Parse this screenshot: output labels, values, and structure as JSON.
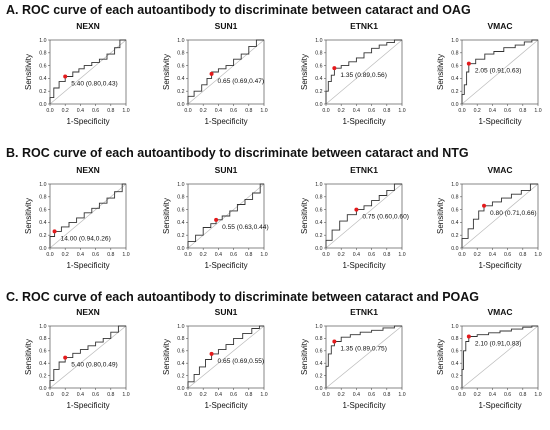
{
  "sections": [
    {
      "title": "A. ROC curve of each autoantibody to discriminate between cataract and OAG"
    },
    {
      "title": "B. ROC curve of each autoantibody to discriminate between cataract and NTG"
    },
    {
      "title": "C. ROC curve of each autoantibody to discriminate between cataract and POAG"
    }
  ],
  "colors": {
    "curve": "#333333",
    "diagonal": "#bbbbbb",
    "point": "#e41a1c"
  },
  "chart_data": [
    {
      "type": "line",
      "title": "NEXN",
      "xlabel": "1-Specificity",
      "ylabel": "Sensitivity",
      "xticks": [
        "0.0",
        "0.2",
        "0.4",
        "0.6",
        "0.8",
        "1.0"
      ],
      "yticks": [
        "0.0",
        "0.2",
        "0.4",
        "0.6",
        "0.8",
        "1.0"
      ],
      "xlim": [
        0,
        1
      ],
      "ylim": [
        0,
        1
      ],
      "diagonal": true,
      "cutoff_point": {
        "x": 0.2,
        "y": 0.43
      },
      "annotation": "5.40 (0.80,0.43)",
      "x": [
        0,
        0,
        0.05,
        0.05,
        0.12,
        0.12,
        0.2,
        0.2,
        0.3,
        0.3,
        0.38,
        0.38,
        0.45,
        0.45,
        0.55,
        0.55,
        0.65,
        0.65,
        0.75,
        0.75,
        0.85,
        0.85,
        0.92,
        0.92,
        1
      ],
      "y": [
        0,
        0.1,
        0.1,
        0.25,
        0.25,
        0.35,
        0.35,
        0.43,
        0.43,
        0.5,
        0.5,
        0.55,
        0.55,
        0.6,
        0.6,
        0.65,
        0.65,
        0.7,
        0.7,
        0.78,
        0.78,
        0.88,
        0.88,
        1,
        1
      ]
    },
    {
      "type": "line",
      "title": "SUN1",
      "xlabel": "1-Specificity",
      "ylabel": "Sensitivity",
      "xticks": [
        "0.0",
        "0.2",
        "0.4",
        "0.6",
        "0.8",
        "1.0"
      ],
      "yticks": [
        "0.0",
        "0.2",
        "0.4",
        "0.6",
        "0.8",
        "1.0"
      ],
      "xlim": [
        0,
        1
      ],
      "ylim": [
        0,
        1
      ],
      "diagonal": true,
      "cutoff_point": {
        "x": 0.31,
        "y": 0.47
      },
      "annotation": "0.65 (0.69,0.47)",
      "x": [
        0,
        0,
        0.08,
        0.08,
        0.18,
        0.18,
        0.25,
        0.25,
        0.31,
        0.31,
        0.4,
        0.4,
        0.5,
        0.5,
        0.6,
        0.6,
        0.7,
        0.7,
        0.8,
        0.8,
        0.9,
        0.9,
        1
      ],
      "y": [
        0,
        0.12,
        0.12,
        0.2,
        0.2,
        0.3,
        0.3,
        0.4,
        0.4,
        0.5,
        0.5,
        0.55,
        0.55,
        0.6,
        0.6,
        0.7,
        0.7,
        0.78,
        0.78,
        0.9,
        0.9,
        1,
        1
      ]
    },
    {
      "type": "line",
      "title": "ETNK1",
      "xlabel": "1-Specificity",
      "ylabel": "Sensitivity",
      "xticks": [
        "0.0",
        "0.2",
        "0.4",
        "0.6",
        "0.8",
        "1.0"
      ],
      "yticks": [
        "0.0",
        "0.2",
        "0.4",
        "0.6",
        "0.8",
        "1.0"
      ],
      "xlim": [
        0,
        1
      ],
      "ylim": [
        0,
        1
      ],
      "diagonal": true,
      "cutoff_point": {
        "x": 0.11,
        "y": 0.56
      },
      "annotation": "1.35 (0.89,0.56)",
      "x": [
        0,
        0,
        0.03,
        0.03,
        0.07,
        0.07,
        0.11,
        0.11,
        0.2,
        0.2,
        0.3,
        0.3,
        0.4,
        0.4,
        0.5,
        0.5,
        0.6,
        0.6,
        0.7,
        0.7,
        0.8,
        0.8,
        0.9,
        0.9,
        1
      ],
      "y": [
        0,
        0.2,
        0.2,
        0.35,
        0.35,
        0.45,
        0.45,
        0.56,
        0.56,
        0.6,
        0.6,
        0.66,
        0.66,
        0.72,
        0.72,
        0.8,
        0.8,
        0.87,
        0.87,
        0.92,
        0.92,
        0.96,
        0.96,
        1,
        1
      ]
    },
    {
      "type": "line",
      "title": "VMAC",
      "xlabel": "1-Specificity",
      "ylabel": "Sensitivity",
      "xticks": [
        "0.0",
        "0.2",
        "0.4",
        "0.6",
        "0.8",
        "1.0"
      ],
      "yticks": [
        "0.0",
        "0.2",
        "0.4",
        "0.6",
        "0.8",
        "1.0"
      ],
      "xlim": [
        0,
        1
      ],
      "ylim": [
        0,
        1
      ],
      "diagonal": true,
      "cutoff_point": {
        "x": 0.09,
        "y": 0.63
      },
      "annotation": "2.05 (0.91,0.63)",
      "x": [
        0,
        0,
        0.03,
        0.03,
        0.06,
        0.06,
        0.09,
        0.09,
        0.18,
        0.18,
        0.3,
        0.3,
        0.42,
        0.42,
        0.55,
        0.55,
        0.7,
        0.7,
        0.82,
        0.82,
        0.92,
        0.92,
        1
      ],
      "y": [
        0,
        0.15,
        0.15,
        0.3,
        0.3,
        0.5,
        0.5,
        0.63,
        0.63,
        0.7,
        0.7,
        0.78,
        0.78,
        0.82,
        0.82,
        0.88,
        0.88,
        0.92,
        0.92,
        0.97,
        0.97,
        1,
        1
      ]
    },
    {
      "type": "line",
      "title": "NEXN",
      "xlabel": "1-Specificity",
      "ylabel": "Sensitivity",
      "xticks": [
        "0.0",
        "0.2",
        "0.4",
        "0.6",
        "0.8",
        "1.0"
      ],
      "yticks": [
        "0.0",
        "0.2",
        "0.4",
        "0.6",
        "0.8",
        "1.0"
      ],
      "xlim": [
        0,
        1
      ],
      "ylim": [
        0,
        1
      ],
      "diagonal": true,
      "cutoff_point": {
        "x": 0.06,
        "y": 0.26
      },
      "annotation": "14.00 (0.94,0.26)",
      "x": [
        0,
        0,
        0.06,
        0.06,
        0.15,
        0.15,
        0.25,
        0.25,
        0.35,
        0.35,
        0.45,
        0.45,
        0.55,
        0.55,
        0.65,
        0.65,
        0.75,
        0.75,
        0.85,
        0.85,
        0.95,
        0.95,
        1
      ],
      "y": [
        0,
        0.18,
        0.18,
        0.26,
        0.26,
        0.33,
        0.33,
        0.4,
        0.4,
        0.47,
        0.47,
        0.55,
        0.55,
        0.62,
        0.62,
        0.7,
        0.7,
        0.78,
        0.78,
        0.88,
        0.88,
        1,
        1
      ]
    },
    {
      "type": "line",
      "title": "SUN1",
      "xlabel": "1-Specificity",
      "ylabel": "Sensitivity",
      "xticks": [
        "0.0",
        "0.2",
        "0.4",
        "0.6",
        "0.8",
        "1.0"
      ],
      "yticks": [
        "0.0",
        "0.2",
        "0.4",
        "0.6",
        "0.8",
        "1.0"
      ],
      "xlim": [
        0,
        1
      ],
      "ylim": [
        0,
        1
      ],
      "diagonal": true,
      "cutoff_point": {
        "x": 0.37,
        "y": 0.44
      },
      "annotation": "0.55 (0.63,0.44)",
      "x": [
        0,
        0,
        0.1,
        0.1,
        0.2,
        0.2,
        0.3,
        0.3,
        0.37,
        0.37,
        0.45,
        0.45,
        0.55,
        0.55,
        0.65,
        0.65,
        0.75,
        0.75,
        0.85,
        0.85,
        0.95,
        0.95,
        1
      ],
      "y": [
        0,
        0.1,
        0.1,
        0.2,
        0.2,
        0.32,
        0.32,
        0.38,
        0.38,
        0.44,
        0.44,
        0.5,
        0.5,
        0.58,
        0.58,
        0.68,
        0.68,
        0.76,
        0.76,
        0.86,
        0.86,
        1,
        1
      ]
    },
    {
      "type": "line",
      "title": "ETNK1",
      "xlabel": "1-Specificity",
      "ylabel": "Sensitivity",
      "xticks": [
        "0.0",
        "0.2",
        "0.4",
        "0.6",
        "0.8",
        "1.0"
      ],
      "yticks": [
        "0.0",
        "0.2",
        "0.4",
        "0.6",
        "0.8",
        "1.0"
      ],
      "xlim": [
        0,
        1
      ],
      "ylim": [
        0,
        1
      ],
      "diagonal": true,
      "cutoff_point": {
        "x": 0.4,
        "y": 0.6
      },
      "annotation": "0.75 (0.60,0.60)",
      "x": [
        0,
        0,
        0.08,
        0.08,
        0.18,
        0.18,
        0.28,
        0.28,
        0.4,
        0.4,
        0.5,
        0.5,
        0.6,
        0.6,
        0.7,
        0.7,
        0.8,
        0.8,
        0.9,
        0.9,
        1
      ],
      "y": [
        0,
        0.12,
        0.12,
        0.28,
        0.28,
        0.42,
        0.42,
        0.52,
        0.52,
        0.6,
        0.6,
        0.66,
        0.66,
        0.74,
        0.74,
        0.82,
        0.82,
        0.9,
        0.9,
        1,
        1
      ]
    },
    {
      "type": "line",
      "title": "VMAC",
      "xlabel": "1-Specificity",
      "ylabel": "Sensitivity",
      "xticks": [
        "0.0",
        "0.2",
        "0.4",
        "0.6",
        "0.8",
        "1.0"
      ],
      "yticks": [
        "0.0",
        "0.2",
        "0.4",
        "0.6",
        "0.8",
        "1.0"
      ],
      "xlim": [
        0,
        1
      ],
      "ylim": [
        0,
        1
      ],
      "diagonal": true,
      "cutoff_point": {
        "x": 0.29,
        "y": 0.66
      },
      "annotation": "0.80 (0.71,0.66)",
      "x": [
        0,
        0,
        0.08,
        0.08,
        0.15,
        0.15,
        0.22,
        0.22,
        0.29,
        0.29,
        0.4,
        0.4,
        0.52,
        0.52,
        0.65,
        0.65,
        0.78,
        0.78,
        0.9,
        0.9,
        1
      ],
      "y": [
        0,
        0.15,
        0.15,
        0.3,
        0.3,
        0.45,
        0.45,
        0.58,
        0.58,
        0.66,
        0.66,
        0.72,
        0.72,
        0.78,
        0.78,
        0.84,
        0.84,
        0.9,
        0.9,
        1,
        1
      ]
    },
    {
      "type": "line",
      "title": "NEXN",
      "xlabel": "1-Specificity",
      "ylabel": "Sensitivity",
      "xticks": [
        "0.0",
        "0.2",
        "0.4",
        "0.6",
        "0.8",
        "1.0"
      ],
      "yticks": [
        "0.0",
        "0.2",
        "0.4",
        "0.6",
        "0.8",
        "1.0"
      ],
      "xlim": [
        0,
        1
      ],
      "ylim": [
        0,
        1
      ],
      "diagonal": true,
      "cutoff_point": {
        "x": 0.2,
        "y": 0.49
      },
      "annotation": "5.40 (0.80,0.49)",
      "x": [
        0,
        0,
        0.05,
        0.05,
        0.12,
        0.12,
        0.2,
        0.2,
        0.3,
        0.3,
        0.4,
        0.4,
        0.5,
        0.5,
        0.6,
        0.6,
        0.7,
        0.7,
        0.8,
        0.8,
        0.9,
        0.9,
        1
      ],
      "y": [
        0,
        0.12,
        0.12,
        0.3,
        0.3,
        0.42,
        0.42,
        0.49,
        0.49,
        0.56,
        0.56,
        0.62,
        0.62,
        0.68,
        0.68,
        0.74,
        0.74,
        0.8,
        0.8,
        0.9,
        0.9,
        1,
        1
      ]
    },
    {
      "type": "line",
      "title": "SUN1",
      "xlabel": "1-Specificity",
      "ylabel": "Sensitivity",
      "xticks": [
        "0.0",
        "0.2",
        "0.4",
        "0.6",
        "0.8",
        "1.0"
      ],
      "yticks": [
        "0.0",
        "0.2",
        "0.4",
        "0.6",
        "0.8",
        "1.0"
      ],
      "xlim": [
        0,
        1
      ],
      "ylim": [
        0,
        1
      ],
      "diagonal": true,
      "cutoff_point": {
        "x": 0.31,
        "y": 0.55
      },
      "annotation": "0.65 (0.69,0.55)",
      "x": [
        0,
        0,
        0.08,
        0.08,
        0.15,
        0.15,
        0.23,
        0.23,
        0.31,
        0.31,
        0.4,
        0.4,
        0.5,
        0.5,
        0.6,
        0.6,
        0.72,
        0.72,
        0.84,
        0.84,
        0.94,
        0.94,
        1
      ],
      "y": [
        0,
        0.1,
        0.1,
        0.22,
        0.22,
        0.34,
        0.34,
        0.46,
        0.46,
        0.55,
        0.55,
        0.62,
        0.62,
        0.7,
        0.7,
        0.8,
        0.8,
        0.88,
        0.88,
        0.96,
        0.96,
        1,
        1
      ]
    },
    {
      "type": "line",
      "title": "ETNK1",
      "xlabel": "1-Specificity",
      "ylabel": "Sensitivity",
      "xticks": [
        "0.0",
        "0.2",
        "0.4",
        "0.6",
        "0.8",
        "1.0"
      ],
      "yticks": [
        "0.0",
        "0.2",
        "0.4",
        "0.6",
        "0.8",
        "1.0"
      ],
      "xlim": [
        0,
        1
      ],
      "ylim": [
        0,
        1
      ],
      "diagonal": true,
      "cutoff_point": {
        "x": 0.11,
        "y": 0.75
      },
      "annotation": "1.35 (0.89,0.75)",
      "x": [
        0,
        0,
        0.03,
        0.03,
        0.07,
        0.07,
        0.11,
        0.11,
        0.2,
        0.2,
        0.32,
        0.32,
        0.45,
        0.45,
        0.6,
        0.6,
        0.75,
        0.75,
        0.9,
        0.9,
        1
      ],
      "y": [
        0,
        0.35,
        0.35,
        0.55,
        0.55,
        0.68,
        0.68,
        0.75,
        0.75,
        0.82,
        0.82,
        0.86,
        0.86,
        0.9,
        0.9,
        0.93,
        0.93,
        0.97,
        0.97,
        1,
        1
      ]
    },
    {
      "type": "line",
      "title": "VMAC",
      "xlabel": "1-Specificity",
      "ylabel": "Sensitivity",
      "xticks": [
        "0.0",
        "0.2",
        "0.4",
        "0.6",
        "0.8",
        "1.0"
      ],
      "yticks": [
        "0.0",
        "0.2",
        "0.4",
        "0.6",
        "0.8",
        "1.0"
      ],
      "xlim": [
        0,
        1
      ],
      "ylim": [
        0,
        1
      ],
      "diagonal": true,
      "cutoff_point": {
        "x": 0.09,
        "y": 0.83
      },
      "annotation": "2.10 (0.91,0.83)",
      "x": [
        0,
        0,
        0.02,
        0.02,
        0.05,
        0.05,
        0.09,
        0.09,
        0.2,
        0.2,
        0.35,
        0.35,
        0.5,
        0.5,
        0.65,
        0.65,
        0.8,
        0.8,
        0.92,
        0.92,
        1
      ],
      "y": [
        0,
        0.3,
        0.3,
        0.6,
        0.6,
        0.75,
        0.75,
        0.83,
        0.83,
        0.86,
        0.86,
        0.89,
        0.89,
        0.92,
        0.92,
        0.95,
        0.95,
        0.98,
        0.98,
        1,
        1
      ]
    }
  ]
}
